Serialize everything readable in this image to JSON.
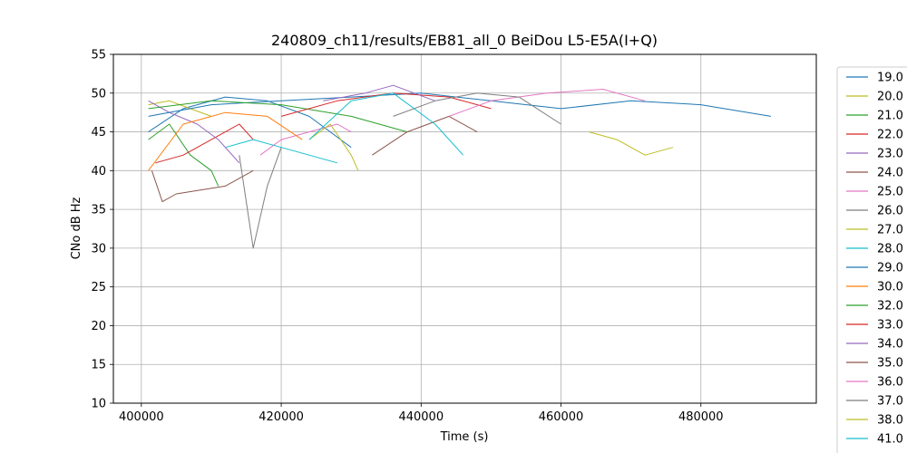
{
  "chart_data": {
    "type": "line",
    "title": "240809_ch11/results/EB81_all_0 BeiDou L5-E5A(I+Q)",
    "xlabel": "Time (s)",
    "ylabel": "CNo dB Hz",
    "xlim": [
      396000,
      496500
    ],
    "ylim": [
      10,
      55
    ],
    "xticks": [
      400000,
      420000,
      440000,
      460000,
      480000
    ],
    "xtick_labels": [
      "400000",
      "420000",
      "440000",
      "460000",
      "480000"
    ],
    "yticks": [
      10,
      15,
      20,
      25,
      30,
      35,
      40,
      45,
      50,
      55
    ],
    "ytick_labels": [
      "10",
      "15",
      "20",
      "25",
      "30",
      "35",
      "40",
      "45",
      "50",
      "55"
    ],
    "grid": true,
    "legend_position": "right-outside",
    "series": [
      {
        "name": "19.0",
        "color": "#1f77b4",
        "x": [
          401000,
          406000,
          412000,
          418000,
          424000,
          430000
        ],
        "y": [
          45,
          48,
          49.5,
          49,
          47,
          43
        ]
      },
      {
        "name": "20.0",
        "color": "#bcbd22",
        "x": [
          401000,
          404000,
          407000,
          410000
        ],
        "y": [
          48.5,
          49,
          48,
          47
        ]
      },
      {
        "name": "21.0",
        "color": "#2ca02c",
        "x": [
          401000,
          404000,
          407000,
          410000,
          411000
        ],
        "y": [
          44,
          46,
          42,
          40,
          38
        ]
      },
      {
        "name": "22.0",
        "color": "#d62728",
        "x": [
          402000,
          406000,
          410000,
          414000,
          416000
        ],
        "y": [
          41,
          42,
          44,
          46,
          44
        ]
      },
      {
        "name": "23.0",
        "color": "#9467bd",
        "x": [
          401000,
          404000,
          408000,
          411000,
          414000
        ],
        "y": [
          49,
          47.5,
          46,
          44,
          41
        ]
      },
      {
        "name": "24.0",
        "color": "#8c564b",
        "x": [
          401500,
          403000,
          405000,
          412000,
          416000
        ],
        "y": [
          40,
          36,
          37,
          38,
          40
        ]
      },
      {
        "name": "25.0",
        "color": "#e377c2",
        "x": [
          417000,
          420000,
          424000,
          428000,
          430000
        ],
        "y": [
          42,
          44,
          45,
          46,
          45
        ]
      },
      {
        "name": "26.0",
        "color": "#7f7f7f",
        "x": [
          414000,
          416000,
          418000,
          420000
        ],
        "y": [
          42,
          30,
          38,
          43
        ]
      },
      {
        "name": "27.0",
        "color": "#bcbd22",
        "x": [
          424000,
          427000,
          430000,
          431000
        ],
        "y": [
          44,
          46,
          42,
          40
        ]
      },
      {
        "name": "28.0",
        "color": "#17becf",
        "x": [
          412000,
          416000,
          420000,
          424000,
          428000
        ],
        "y": [
          43,
          44,
          43,
          42,
          41
        ]
      },
      {
        "name": "29.0",
        "color": "#1f77b4",
        "x": [
          401000,
          410000,
          420000,
          430000,
          440000,
          450000,
          460000,
          470000,
          480000,
          490000
        ],
        "y": [
          47,
          48.5,
          49,
          49.5,
          50,
          49,
          48,
          49,
          48.5,
          47
        ]
      },
      {
        "name": "30.0",
        "color": "#ff7f0e",
        "x": [
          401000,
          406000,
          412000,
          418000,
          423000
        ],
        "y": [
          40,
          46,
          47.5,
          47,
          44
        ]
      },
      {
        "name": "32.0",
        "color": "#2ca02c",
        "x": [
          401000,
          410000,
          420000,
          430000,
          438000
        ],
        "y": [
          48,
          49,
          48.5,
          47,
          45
        ]
      },
      {
        "name": "33.0",
        "color": "#d62728",
        "x": [
          420000,
          428000,
          436000,
          444000,
          450000
        ],
        "y": [
          47,
          49,
          50,
          49.5,
          48
        ]
      },
      {
        "name": "34.0",
        "color": "#9467bd",
        "x": [
          426000,
          432000,
          436000,
          442000
        ],
        "y": [
          49,
          50,
          51,
          49
        ]
      },
      {
        "name": "35.0",
        "color": "#8c564b",
        "x": [
          433000,
          438000,
          444000,
          448000
        ],
        "y": [
          42,
          45,
          47,
          45
        ]
      },
      {
        "name": "36.0",
        "color": "#e377c2",
        "x": [
          444000,
          450000,
          458000,
          466000,
          472000
        ],
        "y": [
          47,
          49,
          50,
          50.5,
          49
        ]
      },
      {
        "name": "37.0",
        "color": "#7f7f7f",
        "x": [
          436000,
          442000,
          448000,
          454000,
          460000
        ],
        "y": [
          47,
          49,
          50,
          49.5,
          46
        ]
      },
      {
        "name": "38.0",
        "color": "#bcbd22",
        "x": [
          464000,
          468000,
          472000,
          476000
        ],
        "y": [
          45,
          44,
          42,
          43
        ]
      },
      {
        "name": "41.0",
        "color": "#17becf",
        "x": [
          424000,
          430000,
          436000,
          442000,
          446000
        ],
        "y": [
          44,
          49,
          50,
          46,
          42
        ]
      }
    ]
  }
}
